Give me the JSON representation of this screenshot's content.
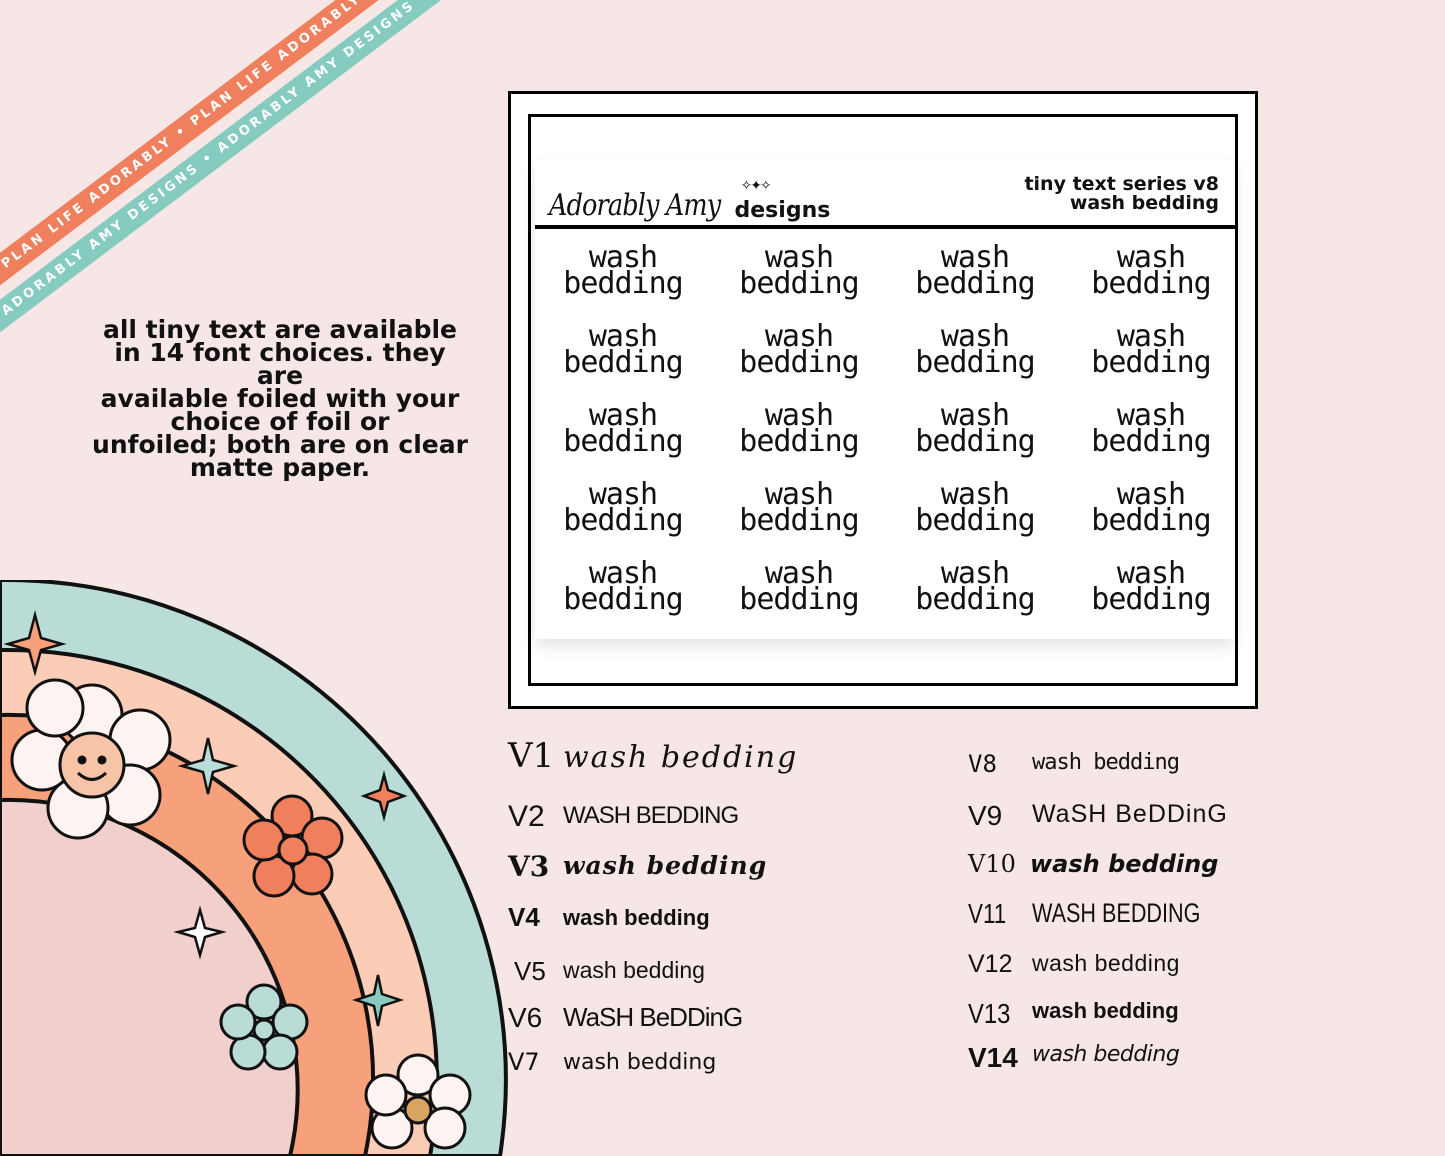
{
  "ribbons": {
    "top": "PLAN LIFE ADORABLY • PLAN LIFE ADORABLY • PLAN LIFE ADORABLY",
    "bottom": "ADORABLY AMY DESIGNS • ADORABLY AMY DESIGNS • ADORABLY AMY DESIGNS"
  },
  "info": {
    "lines": [
      "all tiny text are available",
      "in 14 font choices. they are",
      "available foiled with your",
      "choice of foil or",
      "unfoiled; both are on clear",
      "matte paper."
    ]
  },
  "sheet": {
    "brand_script": "Adorably Amy",
    "brand_word": "designs",
    "series_title": "tiny text series v8",
    "series_subtitle": "wash bedding",
    "sticker_line1": "wash",
    "sticker_line2": "bedding",
    "sticker_count": 20
  },
  "variants_left": [
    {
      "label": "V1",
      "text": "wash bedding"
    },
    {
      "label": "V2",
      "text": "WASH BEDDING"
    },
    {
      "label": "V3",
      "text": "wash bedding"
    },
    {
      "label": "V4",
      "text": "wash bedding"
    },
    {
      "label": "V5",
      "text": "wash bedding"
    },
    {
      "label": "V6",
      "text": "WaSH BeDDinG"
    },
    {
      "label": "V7",
      "text": "wash bedding"
    }
  ],
  "variants_right": [
    {
      "label": "V8",
      "text": "wash bedding"
    },
    {
      "label": "V9",
      "text": "WaSH BeDDinG"
    },
    {
      "label": "V10",
      "text": "wash bedding"
    },
    {
      "label": "V11",
      "text": "WASH BEDDING"
    },
    {
      "label": "V12",
      "text": "wash bedding"
    },
    {
      "label": "V13",
      "text": "wash bedding"
    },
    {
      "label": "V14",
      "text": "wash bedding"
    }
  ],
  "colors": {
    "background": "#f6e7e6",
    "ribbon_coral": "#ef7f5d",
    "ribbon_teal": "#86cbbf",
    "rainbow_teal": "#b9dcd6",
    "rainbow_peach": "#fbcdb6",
    "rainbow_orange": "#f6a07c",
    "rainbow_pink": "#f0cfcd"
  }
}
